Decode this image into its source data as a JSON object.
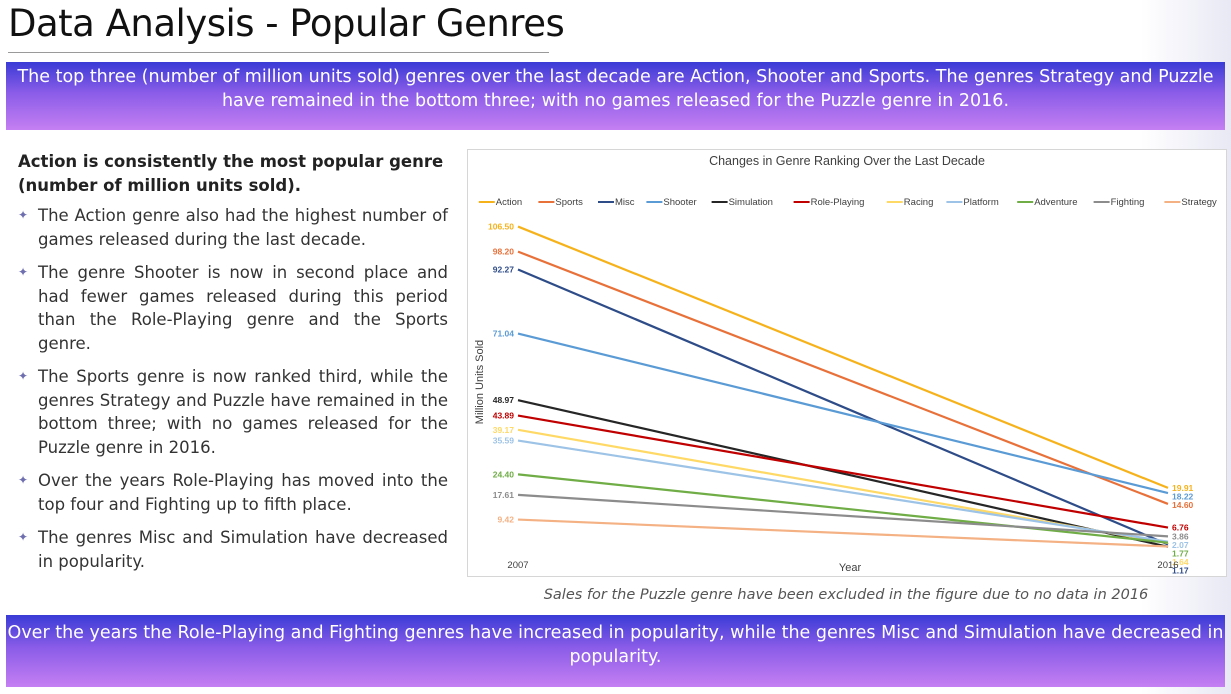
{
  "page": {
    "title": "Data Analysis - Popular Genres",
    "top_banner": "The top three (number of million units sold) genres over the last decade are Action, Shooter and Sports. The genres Strategy and Puzzle have remained in the bottom three; with no games released for the Puzzle genre in 2016.",
    "bottom_banner": "Over the years the Role-Playing and Fighting genres have increased in popularity, while the genres Misc and Simulation have decreased in popularity.",
    "caption": "Sales for the Puzzle genre have been excluded in the figure due to no data in 2016"
  },
  "left": {
    "heading": "Action is consistently the most popular genre (number of million units sold).",
    "bullets": [
      "The Action genre also had the highest number of games released during the last decade.",
      "The genre Shooter is now in second place and had fewer games released during this period than the Role-Playing genre and the Sports genre.",
      "The Sports genre is now ranked third, while the genres Strategy and Puzzle have remained in the bottom three; with no games released for the Puzzle genre in 2016.",
      "Over the years Role-Playing has moved into the top four and Fighting up to fifth place.",
      "The genres Misc and Simulation have decreased in popularity."
    ],
    "bullet_icon": "sparkle-icon"
  },
  "chart_data": {
    "type": "line",
    "title": "Changes in Genre Ranking Over the Last Decade",
    "xlabel": "Year",
    "ylabel": "Million Units Sold",
    "x": [
      "2007",
      "2016"
    ],
    "ylim": [
      0,
      110
    ],
    "grid": false,
    "legend_position": "top",
    "series": [
      {
        "name": "Action",
        "color": "#F6B21B",
        "values": [
          106.5,
          19.91
        ],
        "labels": [
          "106.50",
          "19.91"
        ]
      },
      {
        "name": "Sports",
        "color": "#E8713A",
        "values": [
          98.2,
          14.6
        ],
        "labels": [
          "98.20",
          "14.60"
        ]
      },
      {
        "name": "Misc",
        "color": "#2E4C88",
        "values": [
          92.27,
          1.17
        ],
        "labels": [
          "92.27",
          "1.17"
        ]
      },
      {
        "name": "Shooter",
        "color": "#5B9BD5",
        "values": [
          71.04,
          18.22
        ],
        "labels": [
          "71.04",
          "18.22"
        ]
      },
      {
        "name": "Simulation",
        "color": "#262626",
        "values": [
          48.97,
          0.39
        ],
        "labels": [
          "48.97",
          "0.39"
        ]
      },
      {
        "name": "Role-Playing",
        "color": "#C00000",
        "values": [
          43.89,
          6.76
        ],
        "labels": [
          "43.89",
          "6.76"
        ]
      },
      {
        "name": "Racing",
        "color": "#FFD966",
        "values": [
          39.17,
          1.64
        ],
        "labels": [
          "39.17",
          "1.64"
        ]
      },
      {
        "name": "Platform",
        "color": "#9DC3E6",
        "values": [
          35.59,
          2.07
        ],
        "labels": [
          "35.59",
          "2.07"
        ]
      },
      {
        "name": "Adventure",
        "color": "#70AD47",
        "values": [
          24.4,
          1.77
        ],
        "labels": [
          "24.40",
          "1.77"
        ]
      },
      {
        "name": "Fighting",
        "color": "#8C8C8C",
        "values": [
          17.61,
          3.86
        ],
        "labels": [
          "17.61",
          "3.86"
        ]
      },
      {
        "name": "Strategy",
        "color": "#F4B183",
        "values": [
          9.42,
          0.5
        ],
        "labels": [
          "9.42",
          "0.50"
        ]
      }
    ]
  }
}
